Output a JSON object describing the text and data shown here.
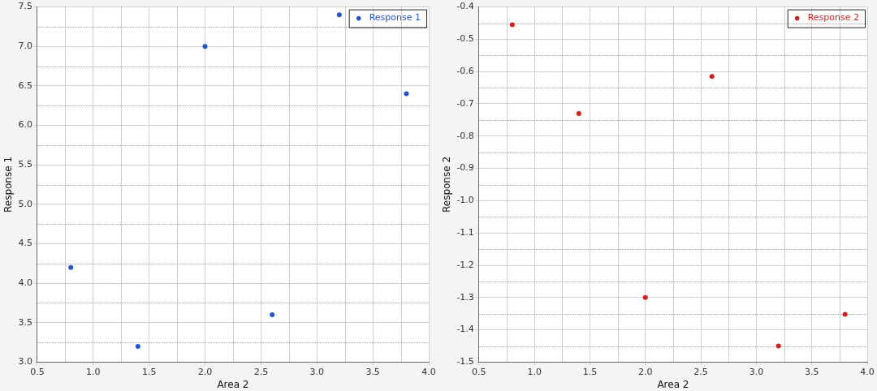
{
  "chart_data": [
    {
      "type": "scatter",
      "xlabel": "Area 2",
      "ylabel": "Response 1",
      "x": [
        0.8,
        1.4,
        2.0,
        2.6,
        3.2,
        3.8
      ],
      "series": [
        {
          "name": "Response 1",
          "color": "#2255cc",
          "values": [
            4.2,
            3.2,
            7.0,
            3.6,
            7.4,
            6.4
          ]
        }
      ],
      "xlim": [
        0.5,
        4.0
      ],
      "ylim": [
        3.0,
        7.5
      ],
      "xticks": [
        {
          "value": 0.5,
          "label": "0.5"
        },
        {
          "value": 1,
          "label": "1.0"
        },
        {
          "value": 1.5,
          "label": "1.5"
        },
        {
          "value": 2,
          "label": "2.0"
        },
        {
          "value": 2.5,
          "label": "2.5"
        },
        {
          "value": 3,
          "label": "3.0"
        },
        {
          "value": 3.5,
          "label": "3.5"
        },
        {
          "value": 4,
          "label": "4.0"
        }
      ],
      "yticks": [
        {
          "value": 3,
          "label": "3.0"
        },
        {
          "value": 3.5,
          "label": "3.5"
        },
        {
          "value": 4,
          "label": "4.0"
        },
        {
          "value": 4.5,
          "label": "4.5"
        },
        {
          "value": 5,
          "label": "5.0"
        },
        {
          "value": 5.5,
          "label": "5.5"
        },
        {
          "value": 6,
          "label": "6.0"
        },
        {
          "value": 6.5,
          "label": "6.5"
        },
        {
          "value": 7,
          "label": "7.0"
        },
        {
          "value": 7.5,
          "label": "7.5"
        }
      ],
      "grid": true,
      "legend": "top right",
      "marker": "circle"
    },
    {
      "type": "scatter",
      "xlabel": "Area 2",
      "ylabel": "Response 2",
      "x": [
        0.8,
        1.4,
        2.0,
        2.6,
        3.2,
        3.8
      ],
      "series": [
        {
          "name": "Response 2",
          "color": "#cc2222",
          "values": [
            -0.455,
            -0.73,
            -1.3,
            -0.615,
            -1.45,
            -1.352
          ]
        }
      ],
      "xlim": [
        0.5,
        4.0
      ],
      "ylim": [
        -1.5,
        -0.4
      ],
      "xticks": [
        {
          "value": 0.5,
          "label": "0.5"
        },
        {
          "value": 1,
          "label": "1.0"
        },
        {
          "value": 1.5,
          "label": "1.5"
        },
        {
          "value": 2,
          "label": "2.0"
        },
        {
          "value": 2.5,
          "label": "2.5"
        },
        {
          "value": 3,
          "label": "3.0"
        },
        {
          "value": 3.5,
          "label": "3.5"
        },
        {
          "value": 4,
          "label": "4.0"
        }
      ],
      "yticks": [
        {
          "value": -1.5,
          "label": "-1.5"
        },
        {
          "value": -1.4,
          "label": "-1.4"
        },
        {
          "value": -1.3,
          "label": "-1.3"
        },
        {
          "value": -1.2,
          "label": "-1.2"
        },
        {
          "value": -1.1,
          "label": "-1.1"
        },
        {
          "value": -1.0,
          "label": "-1.0"
        },
        {
          "value": -0.9,
          "label": "-0.9"
        },
        {
          "value": -0.8,
          "label": "-0.8"
        },
        {
          "value": -0.7,
          "label": "-0.7"
        },
        {
          "value": -0.6,
          "label": "-0.6"
        },
        {
          "value": -0.5,
          "label": "-0.5"
        },
        {
          "value": -0.4,
          "label": "-0.4"
        }
      ],
      "grid": true,
      "legend": "top right",
      "marker": "circle"
    }
  ]
}
